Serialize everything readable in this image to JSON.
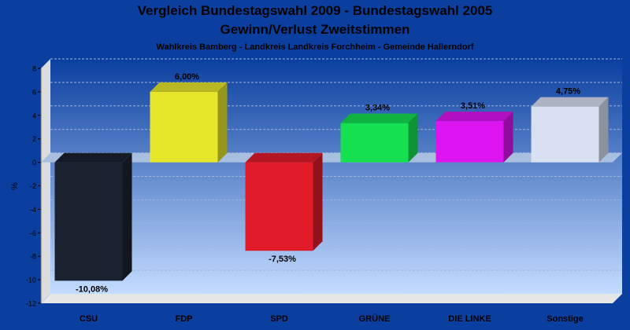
{
  "header": {
    "title_line1": "Vergleich Bundestagswahl 2009 - Bundestagswahl 2005",
    "title_line2": "Gewinn/Verlust Zweitstimmen",
    "subtitle": "Wahlkreis Bamberg - Landkreis Landkreis Forchheim - Gemeinde Hallerndorf"
  },
  "chart_data": {
    "type": "bar",
    "title": "Vergleich Bundestagswahl 2009 - Bundestagswahl 2005 / Gewinn/Verlust Zweitstimmen",
    "subtitle": "Wahlkreis Bamberg - Landkreis Landkreis Forchheim - Gemeinde Hallerndorf",
    "xlabel": "",
    "ylabel": "%",
    "ylim": [
      -12,
      8
    ],
    "yticks": [
      8,
      6,
      4,
      2,
      0,
      -2,
      -4,
      -6,
      -8,
      -10,
      -12
    ],
    "grid": true,
    "categories": [
      "CSU",
      "FDP",
      "SPD",
      "GRÜNE",
      "DIE LINKE",
      "Sonstige"
    ],
    "values": [
      -10.08,
      6.0,
      -7.53,
      3.34,
      3.51,
      4.75
    ],
    "value_labels": [
      "-10,08%",
      "6,00%",
      "-7,53%",
      "3,34%",
      "3,51%",
      "4,75%"
    ],
    "colors": [
      "#1a2230",
      "#e6e62a",
      "#e01c2a",
      "#14e050",
      "#dc14f0",
      "#d8e0f2"
    ]
  }
}
